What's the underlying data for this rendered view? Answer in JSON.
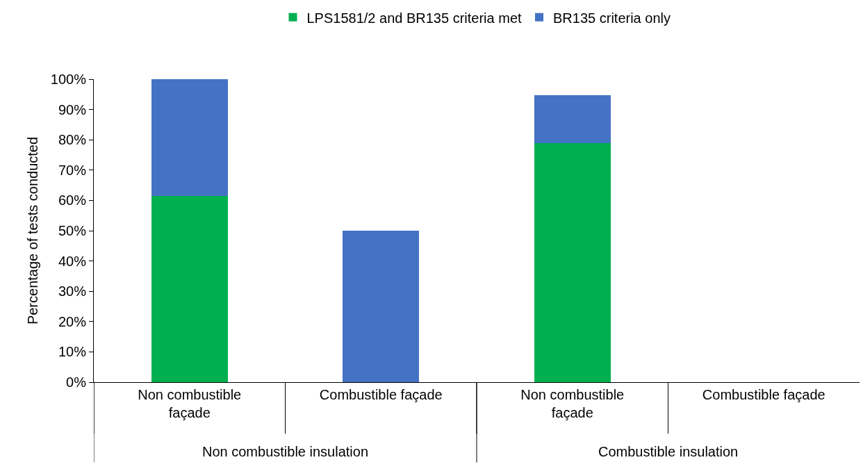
{
  "chart_data": {
    "type": "bar",
    "stacked": true,
    "ylabel": "Percentage of tests conducted",
    "categories": [
      "Non combustible façade",
      "Combustible façade",
      "Non combustible façade",
      "Combustible façade"
    ],
    "series": [
      {
        "name": "LPS1581/2 and BR135 criteria met",
        "color": "#00b050",
        "values": [
          61.5,
          0,
          79,
          0
        ]
      },
      {
        "name": "BR135 criteria only",
        "color": "#4472c4",
        "values": [
          38.5,
          50,
          15.7,
          0
        ]
      }
    ],
    "ylim": [
      0,
      100
    ],
    "yticks": [
      {
        "value": 0,
        "label": "0%"
      },
      {
        "value": 10,
        "label": "10%"
      },
      {
        "value": 20,
        "label": "20%"
      },
      {
        "value": 30,
        "label": "30%"
      },
      {
        "value": 40,
        "label": "40%"
      },
      {
        "value": 50,
        "label": "50%"
      },
      {
        "value": 60,
        "label": "60%"
      },
      {
        "value": 70,
        "label": "70%"
      },
      {
        "value": 80,
        "label": "80%"
      },
      {
        "value": 90,
        "label": "90%"
      },
      {
        "value": 100,
        "label": "100%"
      }
    ],
    "grid": false,
    "legend": "top",
    "annotations": [
      "Non combustible insulation",
      "Combustible insulation"
    ]
  }
}
